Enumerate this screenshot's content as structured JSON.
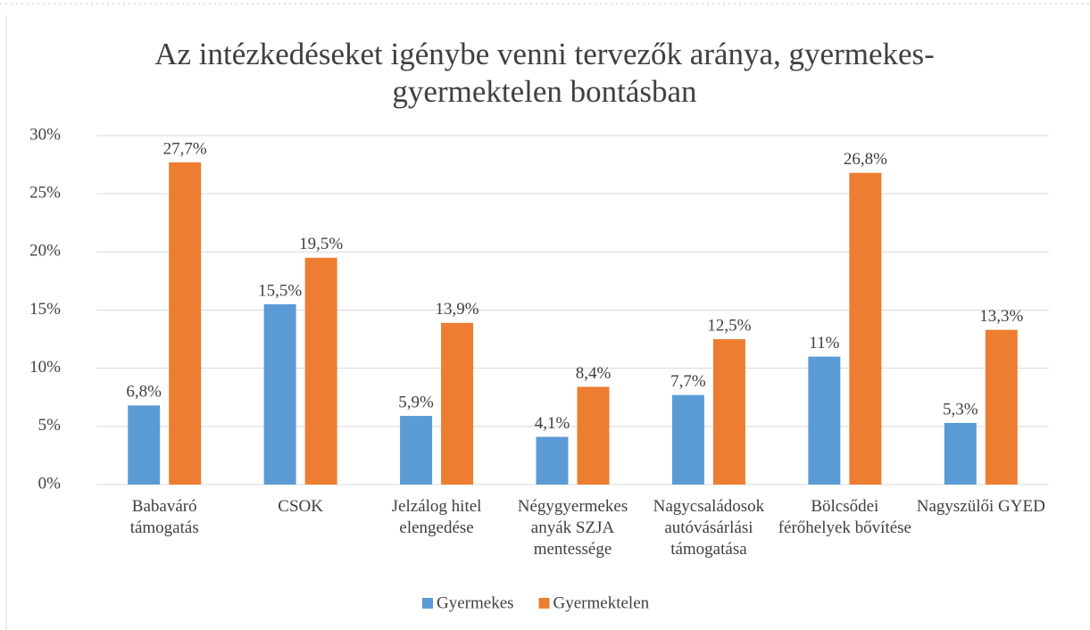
{
  "chart_data": {
    "type": "bar",
    "title": "Az intézkedéseket igénybe venni tervezők aránya, gyermekes-gyermektelen bontásban",
    "categories": [
      "Babaváró támogatás",
      "CSOK",
      "Jelzálog hitel elengedése",
      "Négygyermekes anyák SZJA mentessége",
      "Nagycsaládosok autóvásárlási támogatása",
      "Bölcsődei férőhelyek bővítése",
      "Nagyszülői GYED"
    ],
    "series": [
      {
        "name": "Gyermekes",
        "color": "#5b9bd5",
        "values": [
          6.8,
          15.5,
          5.9,
          4.1,
          7.7,
          11,
          5.3
        ],
        "value_labels": [
          "6,8%",
          "15,5%",
          "5,9%",
          "4,1%",
          "7,7%",
          "11%",
          "5,3%"
        ]
      },
      {
        "name": "Gyermektelen",
        "color": "#ed7d31",
        "values": [
          27.7,
          19.5,
          13.9,
          8.4,
          12.5,
          26.8,
          13.3
        ],
        "value_labels": [
          "27,7%",
          "19,5%",
          "13,9%",
          "8,4%",
          "12,5%",
          "26,8%",
          "13,3%"
        ]
      }
    ],
    "ylim": [
      0,
      30
    ],
    "yticks": [
      {
        "value": 0,
        "label": "0%"
      },
      {
        "value": 5,
        "label": "5%"
      },
      {
        "value": 10,
        "label": "10%"
      },
      {
        "value": 15,
        "label": "15%"
      },
      {
        "value": 20,
        "label": "20%"
      },
      {
        "value": 25,
        "label": "25%"
      },
      {
        "value": 30,
        "label": "30%"
      }
    ],
    "grid": true,
    "legend": "bottom"
  }
}
